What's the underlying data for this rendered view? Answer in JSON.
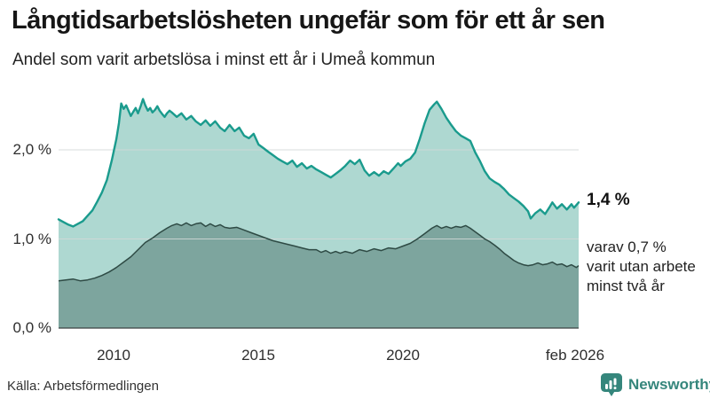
{
  "header": {
    "title": "Långtidsarbetslösheten ungefär som för ett år sen",
    "subtitle": "Andel som varit arbetslösa i minst ett år i Umeå kommun"
  },
  "annotations": {
    "latest": "1,4 %",
    "secondary_lines": [
      "varav 0,7 %",
      "varit utan arbete",
      "minst två år"
    ]
  },
  "footer": {
    "source": "Källa: Arbetsförmedlingen",
    "brand": "Newsworthy"
  },
  "colors": {
    "teal_line": "#1a9b8d",
    "light_fill": "#aed8d1",
    "dark_fill": "#7da59e",
    "dark_line": "#2e4a44",
    "grid": "#d4d9d8",
    "baseline": "#3d4543",
    "logo_teal": "#35867c",
    "text": "#161616"
  },
  "chart_data": {
    "type": "area",
    "title": "Andel som varit arbetslösa i minst ett år i Umeå kommun",
    "unit": "%",
    "grid": true,
    "legend_position": "inline-right",
    "x_domain": [
      2008.08,
      2026.08
    ],
    "y_domain": [
      0,
      2.6
    ],
    "y_ticks": [
      {
        "label": "0,0 %",
        "value": 0.0
      },
      {
        "label": "1,0 %",
        "value": 1.0
      },
      {
        "label": "2,0 %",
        "value": 2.0
      }
    ],
    "x_ticks": [
      {
        "label": "2010",
        "year": 2010
      },
      {
        "label": "2015",
        "year": 2015
      },
      {
        "label": "2020",
        "year": 2020
      },
      {
        "label": "feb 2026",
        "year": 2026.08
      }
    ],
    "series": [
      {
        "name": "Arbetslösa minst ett år",
        "latest_value": 1.4,
        "points": [
          [
            2008.08,
            1.22
          ],
          [
            2008.25,
            1.19
          ],
          [
            2008.42,
            1.16
          ],
          [
            2008.58,
            1.14
          ],
          [
            2008.75,
            1.17
          ],
          [
            2008.92,
            1.2
          ],
          [
            2009.08,
            1.26
          ],
          [
            2009.25,
            1.32
          ],
          [
            2009.42,
            1.42
          ],
          [
            2009.58,
            1.52
          ],
          [
            2009.75,
            1.66
          ],
          [
            2009.92,
            1.88
          ],
          [
            2010.08,
            2.12
          ],
          [
            2010.17,
            2.3
          ],
          [
            2010.25,
            2.52
          ],
          [
            2010.33,
            2.46
          ],
          [
            2010.42,
            2.5
          ],
          [
            2010.5,
            2.44
          ],
          [
            2010.58,
            2.38
          ],
          [
            2010.67,
            2.43
          ],
          [
            2010.75,
            2.47
          ],
          [
            2010.83,
            2.41
          ],
          [
            2010.92,
            2.49
          ],
          [
            2011.0,
            2.57
          ],
          [
            2011.08,
            2.5
          ],
          [
            2011.17,
            2.44
          ],
          [
            2011.25,
            2.47
          ],
          [
            2011.33,
            2.42
          ],
          [
            2011.42,
            2.45
          ],
          [
            2011.5,
            2.49
          ],
          [
            2011.58,
            2.44
          ],
          [
            2011.67,
            2.4
          ],
          [
            2011.75,
            2.37
          ],
          [
            2011.83,
            2.41
          ],
          [
            2011.92,
            2.44
          ],
          [
            2012.0,
            2.42
          ],
          [
            2012.17,
            2.37
          ],
          [
            2012.33,
            2.41
          ],
          [
            2012.5,
            2.34
          ],
          [
            2012.67,
            2.38
          ],
          [
            2012.83,
            2.32
          ],
          [
            2013.0,
            2.28
          ],
          [
            2013.17,
            2.33
          ],
          [
            2013.33,
            2.27
          ],
          [
            2013.5,
            2.32
          ],
          [
            2013.67,
            2.25
          ],
          [
            2013.83,
            2.21
          ],
          [
            2014.0,
            2.28
          ],
          [
            2014.17,
            2.21
          ],
          [
            2014.33,
            2.25
          ],
          [
            2014.5,
            2.16
          ],
          [
            2014.67,
            2.13
          ],
          [
            2014.83,
            2.18
          ],
          [
            2015.0,
            2.06
          ],
          [
            2015.17,
            2.02
          ],
          [
            2015.33,
            1.98
          ],
          [
            2015.5,
            1.94
          ],
          [
            2015.67,
            1.9
          ],
          [
            2015.83,
            1.87
          ],
          [
            2016.0,
            1.84
          ],
          [
            2016.17,
            1.88
          ],
          [
            2016.33,
            1.81
          ],
          [
            2016.5,
            1.85
          ],
          [
            2016.67,
            1.79
          ],
          [
            2016.83,
            1.82
          ],
          [
            2017.0,
            1.78
          ],
          [
            2017.17,
            1.75
          ],
          [
            2017.33,
            1.72
          ],
          [
            2017.5,
            1.69
          ],
          [
            2017.67,
            1.73
          ],
          [
            2017.83,
            1.77
          ],
          [
            2018.0,
            1.82
          ],
          [
            2018.17,
            1.88
          ],
          [
            2018.33,
            1.84
          ],
          [
            2018.5,
            1.89
          ],
          [
            2018.67,
            1.77
          ],
          [
            2018.83,
            1.71
          ],
          [
            2019.0,
            1.75
          ],
          [
            2019.17,
            1.71
          ],
          [
            2019.33,
            1.76
          ],
          [
            2019.5,
            1.73
          ],
          [
            2019.67,
            1.79
          ],
          [
            2019.83,
            1.85
          ],
          [
            2019.92,
            1.82
          ],
          [
            2020.08,
            1.87
          ],
          [
            2020.25,
            1.9
          ],
          [
            2020.42,
            1.97
          ],
          [
            2020.58,
            2.12
          ],
          [
            2020.75,
            2.3
          ],
          [
            2020.92,
            2.45
          ],
          [
            2021.08,
            2.51
          ],
          [
            2021.17,
            2.54
          ],
          [
            2021.33,
            2.46
          ],
          [
            2021.5,
            2.36
          ],
          [
            2021.67,
            2.28
          ],
          [
            2021.83,
            2.21
          ],
          [
            2022.0,
            2.16
          ],
          [
            2022.17,
            2.13
          ],
          [
            2022.33,
            2.1
          ],
          [
            2022.5,
            1.97
          ],
          [
            2022.67,
            1.87
          ],
          [
            2022.83,
            1.76
          ],
          [
            2023.0,
            1.68
          ],
          [
            2023.17,
            1.64
          ],
          [
            2023.33,
            1.61
          ],
          [
            2023.5,
            1.56
          ],
          [
            2023.67,
            1.5
          ],
          [
            2023.83,
            1.46
          ],
          [
            2024.0,
            1.42
          ],
          [
            2024.17,
            1.37
          ],
          [
            2024.33,
            1.31
          ],
          [
            2024.42,
            1.23
          ],
          [
            2024.58,
            1.29
          ],
          [
            2024.75,
            1.33
          ],
          [
            2024.92,
            1.28
          ],
          [
            2025.08,
            1.36
          ],
          [
            2025.17,
            1.41
          ],
          [
            2025.33,
            1.34
          ],
          [
            2025.5,
            1.39
          ],
          [
            2025.67,
            1.33
          ],
          [
            2025.83,
            1.39
          ],
          [
            2025.92,
            1.35
          ],
          [
            2026.0,
            1.38
          ],
          [
            2026.08,
            1.41
          ]
        ]
      },
      {
        "name": "Utan arbete minst två år",
        "latest_value": 0.7,
        "points": [
          [
            2008.08,
            0.53
          ],
          [
            2008.33,
            0.54
          ],
          [
            2008.58,
            0.55
          ],
          [
            2008.83,
            0.53
          ],
          [
            2009.08,
            0.54
          ],
          [
            2009.33,
            0.56
          ],
          [
            2009.58,
            0.59
          ],
          [
            2009.83,
            0.63
          ],
          [
            2010.08,
            0.68
          ],
          [
            2010.33,
            0.74
          ],
          [
            2010.58,
            0.8
          ],
          [
            2010.83,
            0.88
          ],
          [
            2011.08,
            0.96
          ],
          [
            2011.33,
            1.01
          ],
          [
            2011.58,
            1.07
          ],
          [
            2011.83,
            1.12
          ],
          [
            2012.0,
            1.15
          ],
          [
            2012.17,
            1.17
          ],
          [
            2012.33,
            1.15
          ],
          [
            2012.5,
            1.18
          ],
          [
            2012.67,
            1.15
          ],
          [
            2012.83,
            1.17
          ],
          [
            2013.0,
            1.18
          ],
          [
            2013.17,
            1.14
          ],
          [
            2013.33,
            1.17
          ],
          [
            2013.5,
            1.14
          ],
          [
            2013.67,
            1.16
          ],
          [
            2013.83,
            1.13
          ],
          [
            2014.0,
            1.12
          ],
          [
            2014.25,
            1.13
          ],
          [
            2014.5,
            1.1
          ],
          [
            2014.75,
            1.07
          ],
          [
            2015.0,
            1.04
          ],
          [
            2015.25,
            1.01
          ],
          [
            2015.5,
            0.98
          ],
          [
            2015.75,
            0.96
          ],
          [
            2016.0,
            0.94
          ],
          [
            2016.25,
            0.92
          ],
          [
            2016.5,
            0.9
          ],
          [
            2016.75,
            0.88
          ],
          [
            2017.0,
            0.88
          ],
          [
            2017.17,
            0.85
          ],
          [
            2017.33,
            0.87
          ],
          [
            2017.5,
            0.84
          ],
          [
            2017.67,
            0.86
          ],
          [
            2017.83,
            0.84
          ],
          [
            2018.0,
            0.86
          ],
          [
            2018.25,
            0.84
          ],
          [
            2018.5,
            0.88
          ],
          [
            2018.75,
            0.86
          ],
          [
            2019.0,
            0.89
          ],
          [
            2019.25,
            0.87
          ],
          [
            2019.5,
            0.9
          ],
          [
            2019.75,
            0.89
          ],
          [
            2020.0,
            0.92
          ],
          [
            2020.25,
            0.95
          ],
          [
            2020.5,
            1.0
          ],
          [
            2020.75,
            1.06
          ],
          [
            2021.0,
            1.12
          ],
          [
            2021.17,
            1.15
          ],
          [
            2021.33,
            1.12
          ],
          [
            2021.5,
            1.14
          ],
          [
            2021.67,
            1.12
          ],
          [
            2021.83,
            1.14
          ],
          [
            2022.0,
            1.13
          ],
          [
            2022.17,
            1.15
          ],
          [
            2022.33,
            1.12
          ],
          [
            2022.5,
            1.08
          ],
          [
            2022.67,
            1.04
          ],
          [
            2022.83,
            1.0
          ],
          [
            2023.0,
            0.97
          ],
          [
            2023.17,
            0.93
          ],
          [
            2023.33,
            0.89
          ],
          [
            2023.5,
            0.84
          ],
          [
            2023.67,
            0.8
          ],
          [
            2023.83,
            0.76
          ],
          [
            2024.0,
            0.73
          ],
          [
            2024.17,
            0.71
          ],
          [
            2024.33,
            0.7
          ],
          [
            2024.5,
            0.71
          ],
          [
            2024.67,
            0.73
          ],
          [
            2024.83,
            0.71
          ],
          [
            2025.0,
            0.72
          ],
          [
            2025.17,
            0.74
          ],
          [
            2025.33,
            0.71
          ],
          [
            2025.5,
            0.72
          ],
          [
            2025.67,
            0.69
          ],
          [
            2025.83,
            0.71
          ],
          [
            2026.0,
            0.68
          ],
          [
            2026.08,
            0.7
          ]
        ]
      }
    ]
  }
}
